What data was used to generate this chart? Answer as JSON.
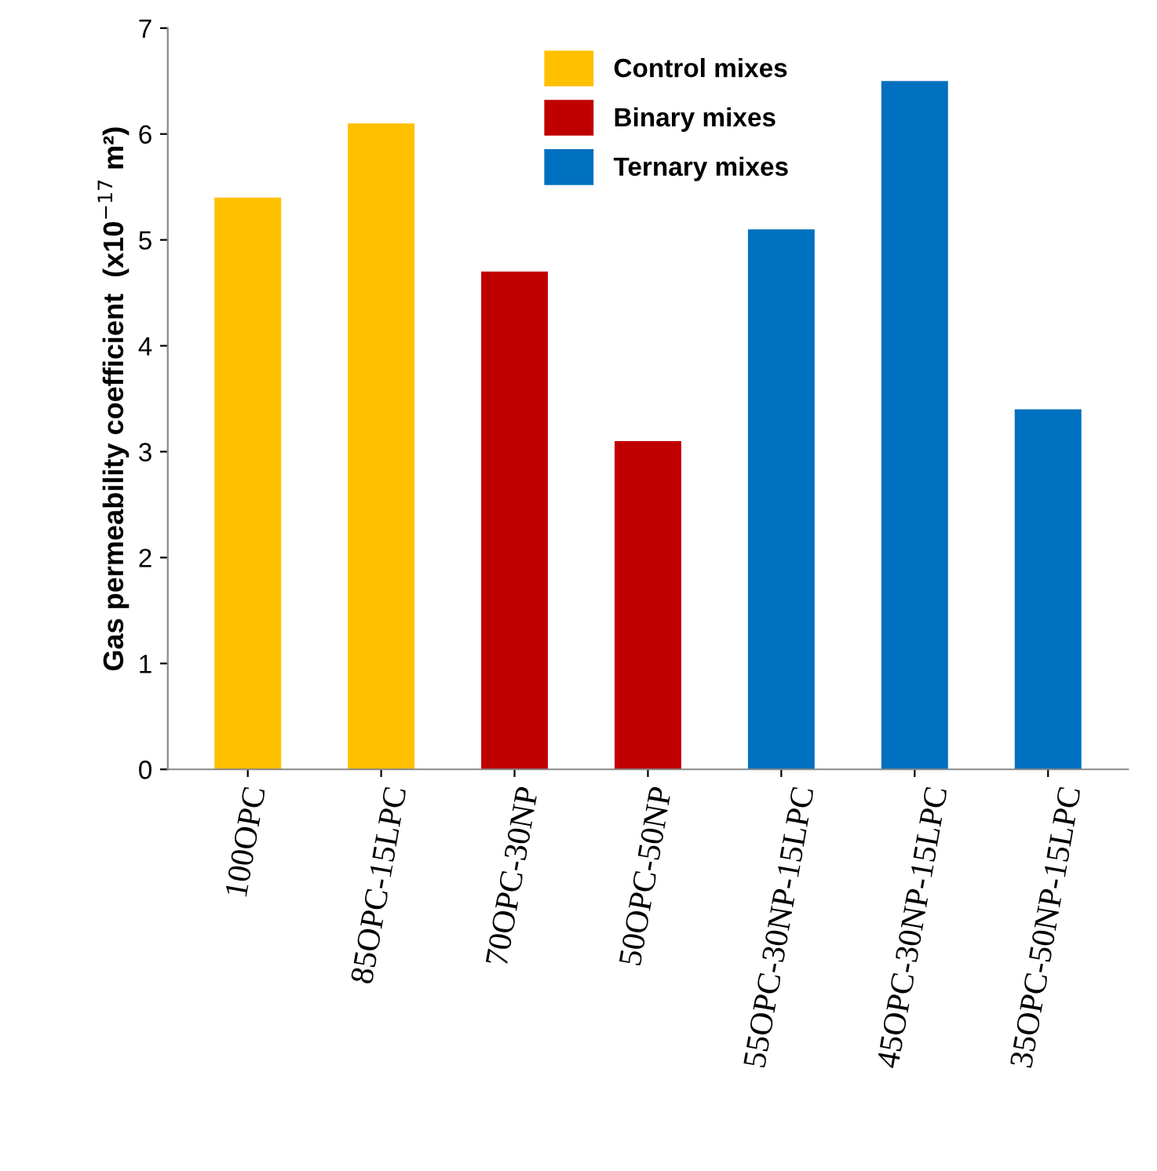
{
  "chart_data": {
    "type": "bar",
    "ylabel": "Gas permeability coefficient  (x10$^{−17}$ m²)",
    "categories": [
      "100OPC",
      "85OPC-15LPC",
      "70OPC-30NP",
      "50OPC-50NP",
      "55OPC-30NP-15LPC",
      "45OPC-30NP-15LPC",
      "35OPC-50NP-15LPC"
    ],
    "series": [
      {
        "name": "Control mixes",
        "color": "#ffc000",
        "values": [
          5.4,
          6.1,
          null,
          null,
          null,
          null,
          null
        ]
      },
      {
        "name": "Binary mixes",
        "color": "#c00000",
        "values": [
          null,
          null,
          4.7,
          3.1,
          null,
          null,
          null
        ]
      },
      {
        "name": "Ternary mixes",
        "color": "#0070c0",
        "values": [
          null,
          null,
          null,
          null,
          5.1,
          6.5,
          3.4
        ]
      }
    ],
    "ylim": [
      0,
      7
    ],
    "yticks": [
      0,
      1,
      2,
      3,
      4,
      5,
      6,
      7
    ],
    "grid": false,
    "legend": "top"
  }
}
